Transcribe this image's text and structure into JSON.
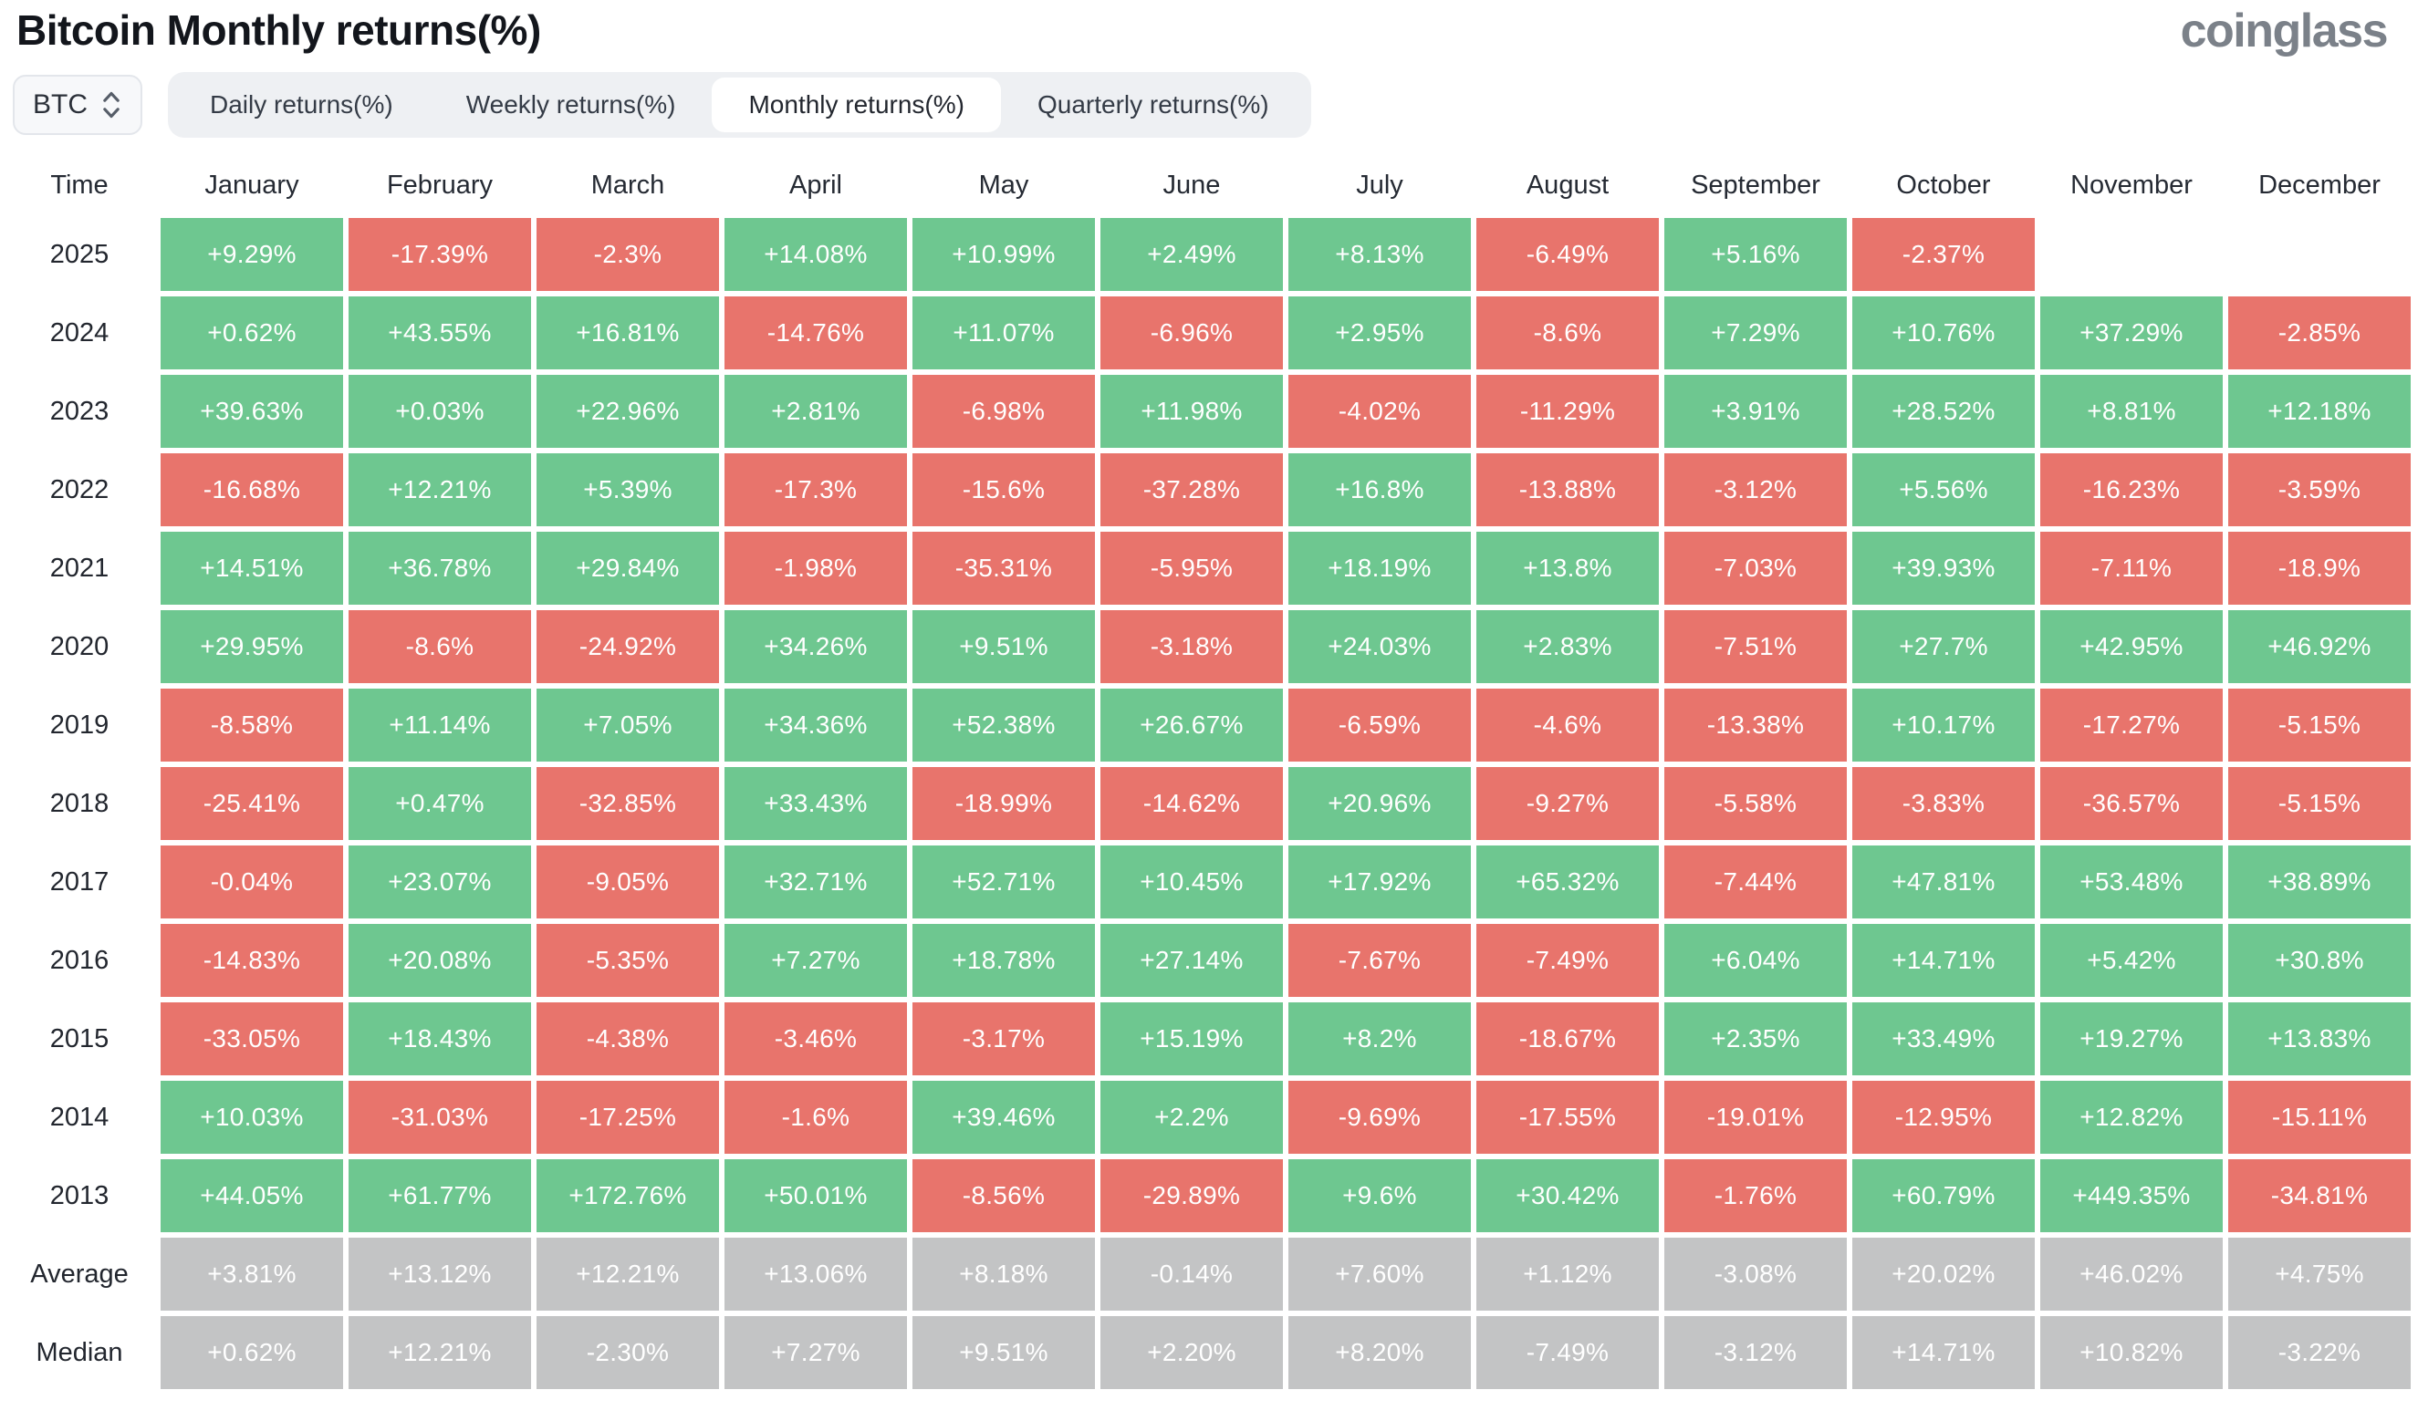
{
  "header": {
    "title": "Bitcoin Monthly returns(%)",
    "logo": "coinglass"
  },
  "controls": {
    "coin_selector": {
      "value": "BTC",
      "icon": "updown-chevron-icon"
    },
    "tabs": [
      {
        "label": "Daily returns(%)",
        "active": false
      },
      {
        "label": "Weekly returns(%)",
        "active": false
      },
      {
        "label": "Monthly returns(%)",
        "active": true
      },
      {
        "label": "Quarterly returns(%)",
        "active": false
      }
    ]
  },
  "colors": {
    "positive": "#6ec790",
    "negative": "#e8746c",
    "summary": "#c3c4c5",
    "cell_text": "#ffffff"
  },
  "chart_data": {
    "type": "heatmap",
    "title": "Bitcoin Monthly returns(%)",
    "columns": [
      "Time",
      "January",
      "February",
      "March",
      "April",
      "May",
      "June",
      "July",
      "August",
      "September",
      "October",
      "November",
      "December"
    ],
    "rows": [
      {
        "label": "2025",
        "type": "year",
        "values": [
          "+9.29%",
          "-17.39%",
          "-2.3%",
          "+14.08%",
          "+10.99%",
          "+2.49%",
          "+8.13%",
          "-6.49%",
          "+5.16%",
          "-2.37%",
          "",
          ""
        ]
      },
      {
        "label": "2024",
        "type": "year",
        "values": [
          "+0.62%",
          "+43.55%",
          "+16.81%",
          "-14.76%",
          "+11.07%",
          "-6.96%",
          "+2.95%",
          "-8.6%",
          "+7.29%",
          "+10.76%",
          "+37.29%",
          "-2.85%"
        ]
      },
      {
        "label": "2023",
        "type": "year",
        "values": [
          "+39.63%",
          "+0.03%",
          "+22.96%",
          "+2.81%",
          "-6.98%",
          "+11.98%",
          "-4.02%",
          "-11.29%",
          "+3.91%",
          "+28.52%",
          "+8.81%",
          "+12.18%"
        ]
      },
      {
        "label": "2022",
        "type": "year",
        "values": [
          "-16.68%",
          "+12.21%",
          "+5.39%",
          "-17.3%",
          "-15.6%",
          "-37.28%",
          "+16.8%",
          "-13.88%",
          "-3.12%",
          "+5.56%",
          "-16.23%",
          "-3.59%"
        ]
      },
      {
        "label": "2021",
        "type": "year",
        "values": [
          "+14.51%",
          "+36.78%",
          "+29.84%",
          "-1.98%",
          "-35.31%",
          "-5.95%",
          "+18.19%",
          "+13.8%",
          "-7.03%",
          "+39.93%",
          "-7.11%",
          "-18.9%"
        ]
      },
      {
        "label": "2020",
        "type": "year",
        "values": [
          "+29.95%",
          "-8.6%",
          "-24.92%",
          "+34.26%",
          "+9.51%",
          "-3.18%",
          "+24.03%",
          "+2.83%",
          "-7.51%",
          "+27.7%",
          "+42.95%",
          "+46.92%"
        ]
      },
      {
        "label": "2019",
        "type": "year",
        "values": [
          "-8.58%",
          "+11.14%",
          "+7.05%",
          "+34.36%",
          "+52.38%",
          "+26.67%",
          "-6.59%",
          "-4.6%",
          "-13.38%",
          "+10.17%",
          "-17.27%",
          "-5.15%"
        ]
      },
      {
        "label": "2018",
        "type": "year",
        "values": [
          "-25.41%",
          "+0.47%",
          "-32.85%",
          "+33.43%",
          "-18.99%",
          "-14.62%",
          "+20.96%",
          "-9.27%",
          "-5.58%",
          "-3.83%",
          "-36.57%",
          "-5.15%"
        ]
      },
      {
        "label": "2017",
        "type": "year",
        "values": [
          "-0.04%",
          "+23.07%",
          "-9.05%",
          "+32.71%",
          "+52.71%",
          "+10.45%",
          "+17.92%",
          "+65.32%",
          "-7.44%",
          "+47.81%",
          "+53.48%",
          "+38.89%"
        ]
      },
      {
        "label": "2016",
        "type": "year",
        "values": [
          "-14.83%",
          "+20.08%",
          "-5.35%",
          "+7.27%",
          "+18.78%",
          "+27.14%",
          "-7.67%",
          "-7.49%",
          "+6.04%",
          "+14.71%",
          "+5.42%",
          "+30.8%"
        ]
      },
      {
        "label": "2015",
        "type": "year",
        "values": [
          "-33.05%",
          "+18.43%",
          "-4.38%",
          "-3.46%",
          "-3.17%",
          "+15.19%",
          "+8.2%",
          "-18.67%",
          "+2.35%",
          "+33.49%",
          "+19.27%",
          "+13.83%"
        ]
      },
      {
        "label": "2014",
        "type": "year",
        "values": [
          "+10.03%",
          "-31.03%",
          "-17.25%",
          "-1.6%",
          "+39.46%",
          "+2.2%",
          "-9.69%",
          "-17.55%",
          "-19.01%",
          "-12.95%",
          "+12.82%",
          "-15.11%"
        ]
      },
      {
        "label": "2013",
        "type": "year",
        "values": [
          "+44.05%",
          "+61.77%",
          "+172.76%",
          "+50.01%",
          "-8.56%",
          "-29.89%",
          "+9.6%",
          "+30.42%",
          "-1.76%",
          "+60.79%",
          "+449.35%",
          "-34.81%"
        ]
      },
      {
        "label": "Average",
        "type": "summary",
        "values": [
          "+3.81%",
          "+13.12%",
          "+12.21%",
          "+13.06%",
          "+8.18%",
          "-0.14%",
          "+7.60%",
          "+1.12%",
          "-3.08%",
          "+20.02%",
          "+46.02%",
          "+4.75%"
        ]
      },
      {
        "label": "Median",
        "type": "summary",
        "values": [
          "+0.62%",
          "+12.21%",
          "-2.30%",
          "+7.27%",
          "+9.51%",
          "+2.20%",
          "+8.20%",
          "-7.49%",
          "-3.12%",
          "+14.71%",
          "+10.82%",
          "-3.22%"
        ]
      }
    ]
  }
}
